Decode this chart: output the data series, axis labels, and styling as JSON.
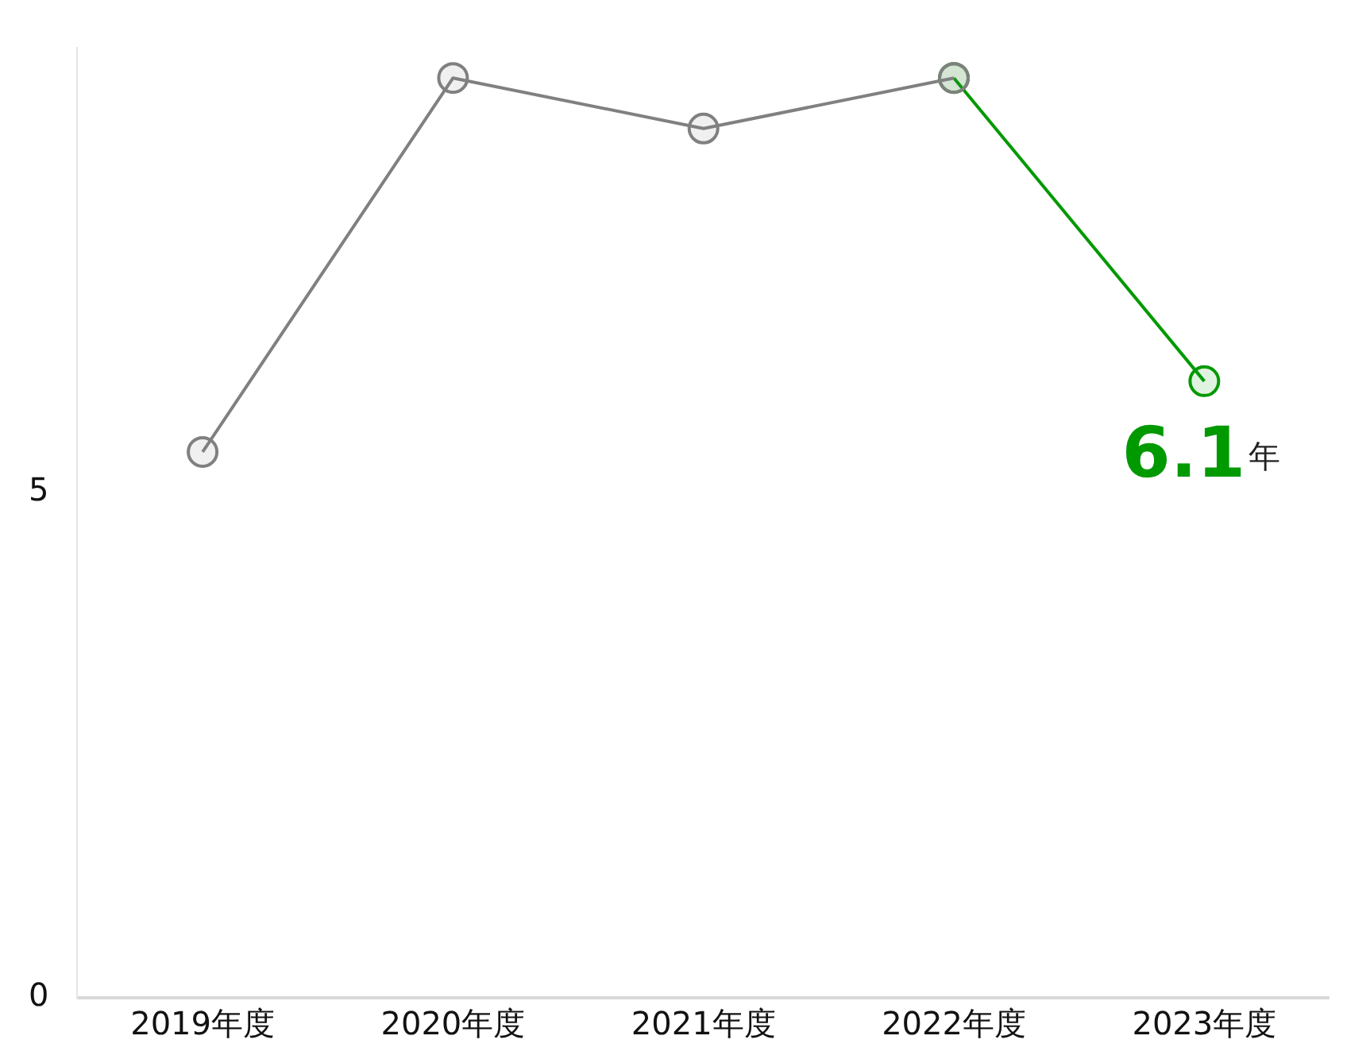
{
  "chart_data": {
    "type": "line",
    "categories": [
      "2019年度",
      "2020年度",
      "2021年度",
      "2022年度",
      "2023年度"
    ],
    "series": [
      {
        "color": "#808080",
        "values": [
          5.4,
          9.1,
          8.6,
          9.1,
          null
        ]
      },
      {
        "color": "#009900",
        "values": [
          null,
          null,
          null,
          9.1,
          6.1
        ],
        "value_labels": [
          null,
          null,
          null,
          null,
          "6.1年"
        ]
      }
    ],
    "ylim": [
      0,
      9.4
    ],
    "yticks": [
      0,
      5
    ],
    "grid": false,
    "legend": false,
    "marker": "circle",
    "line_style": "solid"
  }
}
